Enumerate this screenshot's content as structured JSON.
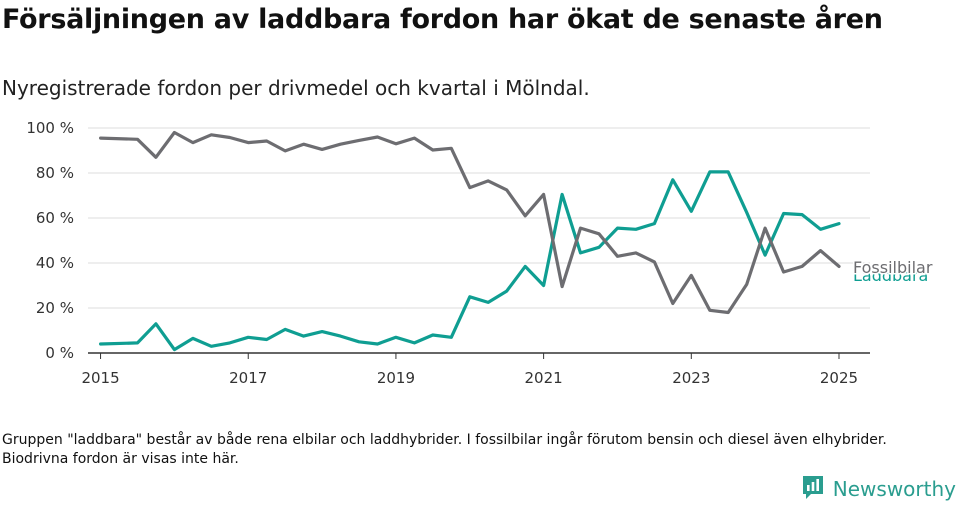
{
  "title": "Försäljningen av laddbara fordon har ökat de senaste åren",
  "subtitle": "Nyregistrerade fordon per drivmedel och kvartal i Mölndal.",
  "footnote": "Gruppen \"laddbara\" består av både rena elbilar och laddhybrider. I fossilbilar ingår förutom bensin och diesel även elhybrider. Biodrivna fordon är visas inte här.",
  "brand": {
    "name": "Newsworthy",
    "icon": "newsworthy-logo-icon",
    "color": "#2a9d8f"
  },
  "chart_data": {
    "type": "line",
    "ylim": [
      0,
      100
    ],
    "y_ticks": [
      0,
      20,
      40,
      60,
      80,
      100
    ],
    "y_tick_labels": [
      "0 %",
      "20 %",
      "40 %",
      "60 %",
      "80 %",
      "100 %"
    ],
    "x_range": [
      2014.83,
      2025.42
    ],
    "x_ticks": [
      2015,
      2017,
      2019,
      2021,
      2023,
      2025
    ],
    "x_tick_labels": [
      "2015",
      "2017",
      "2019",
      "2021",
      "2023",
      "2025"
    ],
    "grid": true,
    "x": [
      2015.0,
      2015.5,
      2015.75,
      2016.0,
      2016.25,
      2016.5,
      2016.75,
      2017.0,
      2017.25,
      2017.5,
      2017.75,
      2018.0,
      2018.25,
      2018.5,
      2018.75,
      2019.0,
      2019.25,
      2019.5,
      2019.75,
      2020.0,
      2020.25,
      2020.5,
      2020.75,
      2021.0,
      2021.25,
      2021.5,
      2021.75,
      2022.0,
      2022.25,
      2022.5,
      2022.75,
      2023.0,
      2023.25,
      2023.5,
      2023.75,
      2024.0,
      2024.25,
      2024.5,
      2024.75,
      2025.0
    ],
    "series": [
      {
        "name": "Fossilbilar",
        "color": "#6d6d71",
        "values": [
          95.5,
          95,
          87,
          98,
          93.5,
          97,
          95.8,
          93.5,
          94.2,
          89.8,
          92.8,
          90.5,
          92.8,
          94.5,
          96.0,
          93.0,
          95.5,
          90.2,
          91.0,
          73.5,
          76.5,
          72.5,
          61.0,
          70.5,
          29.5,
          55.5,
          53.0,
          43.0,
          44.5,
          40.5,
          22.0,
          34.5,
          19.0,
          18.0,
          30.5,
          55.5,
          36.0,
          38.5,
          45.5,
          38.5
        ]
      },
      {
        "name": "Laddbara",
        "color": "#0f9e92",
        "values": [
          4.0,
          4.5,
          13.0,
          1.5,
          6.5,
          3.0,
          4.5,
          7.0,
          6.0,
          10.5,
          7.5,
          9.5,
          7.5,
          5.0,
          4.0,
          7.0,
          4.5,
          8.0,
          7.0,
          25.0,
          22.5,
          27.5,
          38.5,
          30.0,
          70.5,
          44.5,
          47.0,
          55.5,
          55.0,
          57.5,
          77.0,
          63.0,
          80.5,
          80.5,
          62.5,
          43.5,
          62.0,
          61.5,
          55.0,
          57.5
        ]
      }
    ]
  }
}
